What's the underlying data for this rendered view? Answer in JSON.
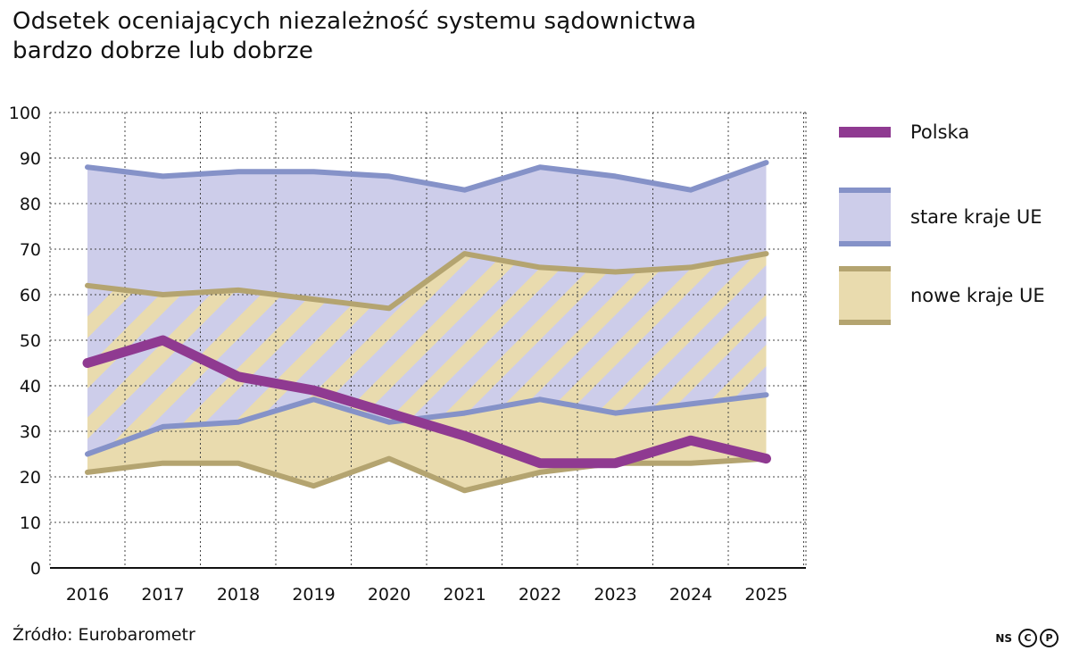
{
  "title_lines": [
    "Odsetek oceniających niezależność systemu sądownictwa",
    "bardzo dobrze lub dobrze"
  ],
  "source": "Źródło: Eurobarometr",
  "brand": {
    "label": "NS",
    "icon1": "c-circle-icon",
    "icon2": "p-circle-icon",
    "glyph1": "C",
    "glyph2": "P"
  },
  "colors": {
    "polska": "#8f3a91",
    "old_line": "#8592c8",
    "old_fill": "#cdcdea",
    "new_line": "#b4a470",
    "new_fill": "#e9dbae",
    "grid": "#444444"
  },
  "chart_data": {
    "type": "line",
    "title": "Odsetek oceniających niezależność systemu sądownictwa bardzo dobrze lub dobrze",
    "x": [
      "2016",
      "2017",
      "2018",
      "2019",
      "2020",
      "2021",
      "2022",
      "2023",
      "2024",
      "2025"
    ],
    "ylim": [
      0,
      100
    ],
    "yticks": [
      0,
      10,
      20,
      30,
      40,
      50,
      60,
      70,
      80,
      90,
      100
    ],
    "grid": true,
    "legend_position": "right",
    "series": [
      {
        "name": "Polska",
        "values": [
          45,
          50,
          42,
          39,
          34,
          29,
          23,
          23,
          28,
          24
        ]
      }
    ],
    "bands": [
      {
        "name": "stare kraje UE",
        "upper": [
          88,
          86,
          87,
          87,
          86,
          83,
          88,
          86,
          83,
          89
        ],
        "lower": [
          25,
          31,
          32,
          37,
          32,
          34,
          37,
          34,
          36,
          38
        ]
      },
      {
        "name": "nowe kraje UE",
        "upper": [
          62,
          60,
          61,
          59,
          57,
          69,
          66,
          65,
          66,
          69
        ],
        "lower": [
          21,
          23,
          23,
          18,
          24,
          17,
          21,
          23,
          23,
          24
        ]
      }
    ]
  }
}
